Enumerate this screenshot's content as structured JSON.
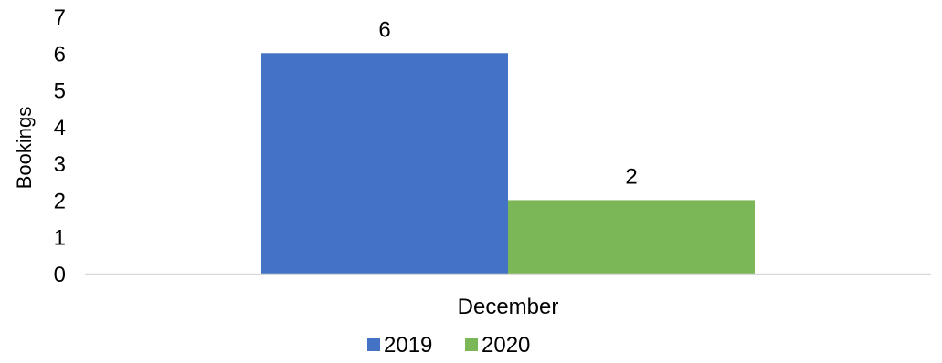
{
  "chart_data": {
    "type": "bar",
    "categories": [
      "December"
    ],
    "series": [
      {
        "name": "2019",
        "values": [
          6
        ],
        "color": "#4472C4"
      },
      {
        "name": "2020",
        "values": [
          2
        ],
        "color": "#7CB757"
      }
    ],
    "title": "",
    "xlabel": "",
    "ylabel": "Bookings",
    "ylim": [
      0,
      7
    ],
    "yticks": [
      "0",
      "1",
      "2",
      "3",
      "4",
      "5",
      "6",
      "7"
    ],
    "grid": false,
    "legend": "bottom",
    "data_labels": true,
    "axis_color": "#D9D9D9"
  }
}
